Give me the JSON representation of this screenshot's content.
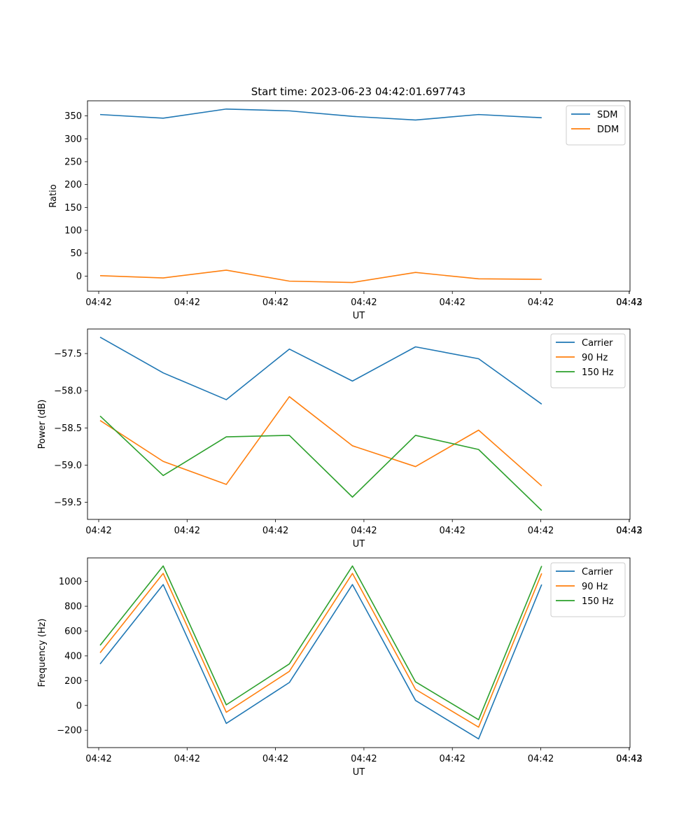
{
  "figure": {
    "title": "Start time: 2023-06-23 04:42:01.697743"
  },
  "colors": {
    "series_1": "#1f77b4",
    "series_2": "#ff7f0e",
    "series_3": "#2ca02c",
    "axes": "#000000",
    "legend_border": "#cccccc"
  },
  "chart_data": [
    {
      "type": "line",
      "title": "Start time: 2023-06-23 04:42:01.697743",
      "xlabel": "UT",
      "ylabel": "Ratio",
      "x": [
        1,
        2,
        3,
        4,
        5,
        6,
        7,
        8
      ],
      "x_tick_labels": [
        "04:42",
        "04:42",
        "04:42",
        "04:42",
        "04:42",
        "04:42",
        "04:42"
      ],
      "x_tick_last_label": "04:43",
      "xlim": [
        0.8,
        9.4
      ],
      "ylim": [
        -33,
        383
      ],
      "yticks": [
        0,
        50,
        100,
        150,
        200,
        250,
        300,
        350
      ],
      "grid": false,
      "legend_position": "top-right",
      "series": [
        {
          "name": "SDM",
          "values": [
            353,
            345,
            365,
            361,
            349,
            341,
            353,
            346
          ]
        },
        {
          "name": "DDM",
          "values": [
            1,
            -4,
            13,
            -11,
            -14,
            8,
            -6,
            -7
          ]
        }
      ]
    },
    {
      "type": "line",
      "title": "",
      "xlabel": "UT",
      "ylabel": "Power (dB)",
      "x": [
        1,
        2,
        3,
        4,
        5,
        6,
        7,
        8
      ],
      "x_tick_labels": [
        "04:42",
        "04:42",
        "04:42",
        "04:42",
        "04:42",
        "04:42",
        "04:42"
      ],
      "x_tick_last_label": "04:43",
      "xlim": [
        0.8,
        9.4
      ],
      "ylim": [
        -59.73,
        -57.17
      ],
      "yticks": [
        -59.5,
        -59.0,
        -58.5,
        -58.0,
        -57.5
      ],
      "ytick_labels": [
        "−59.5",
        "−59.0",
        "−58.5",
        "−58.0",
        "−57.5"
      ],
      "grid": false,
      "legend_position": "top-right",
      "series": [
        {
          "name": "Carrier",
          "values": [
            -57.28,
            -57.76,
            -58.12,
            -57.44,
            -57.87,
            -57.41,
            -57.57,
            -58.18
          ]
        },
        {
          "name": "90 Hz",
          "values": [
            -58.4,
            -58.95,
            -59.26,
            -58.08,
            -58.74,
            -59.02,
            -58.53,
            -59.28
          ]
        },
        {
          "name": "150 Hz",
          "values": [
            -58.34,
            -59.14,
            -58.62,
            -58.6,
            -59.43,
            -58.6,
            -58.79,
            -59.61
          ]
        }
      ]
    },
    {
      "type": "line",
      "title": "",
      "xlabel": "UT",
      "ylabel": "Frequency (Hz)",
      "x": [
        1,
        2,
        3,
        4,
        5,
        6,
        7,
        8
      ],
      "x_tick_labels": [
        "04:42",
        "04:42",
        "04:42",
        "04:42",
        "04:42",
        "04:42",
        "04:42"
      ],
      "x_tick_last_label": "04:43",
      "xlim": [
        0.8,
        9.4
      ],
      "ylim": [
        -340,
        1190
      ],
      "yticks": [
        -200,
        0,
        200,
        400,
        600,
        800,
        1000
      ],
      "ytick_labels": [
        "−200",
        "0",
        "200",
        "400",
        "600",
        "800",
        "1000"
      ],
      "grid": false,
      "legend_position": "top-right",
      "series": [
        {
          "name": "Carrier",
          "values": [
            335,
            975,
            -145,
            185,
            975,
            40,
            -270,
            975
          ]
        },
        {
          "name": "90 Hz",
          "values": [
            425,
            1065,
            -55,
            275,
            1065,
            130,
            -175,
            1065
          ]
        },
        {
          "name": "150 Hz",
          "values": [
            485,
            1125,
            5,
            335,
            1125,
            190,
            -115,
            1125
          ]
        }
      ]
    }
  ]
}
